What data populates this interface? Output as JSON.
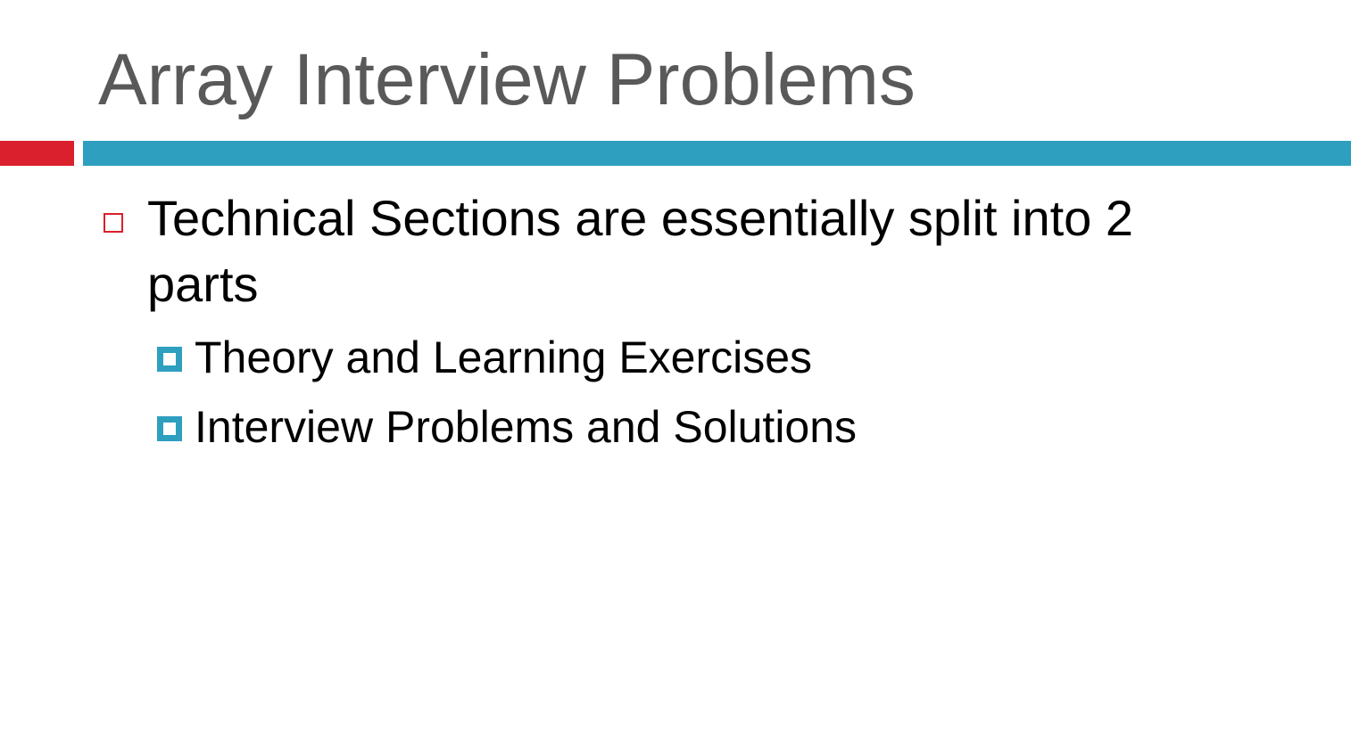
{
  "slide": {
    "title": "Array Interview Problems",
    "colors": {
      "accent_red": "#d9202c",
      "accent_blue": "#2e9fbf",
      "title_text": "#595959",
      "body_text": "#000000"
    },
    "bullets": [
      {
        "text": "Technical Sections are essentially split into 2 parts",
        "marker": "hollow-square-icon",
        "sub_bullets": [
          {
            "text": "Theory and Learning Exercises",
            "marker": "filled-square-icon"
          },
          {
            "text": "Interview Problems and Solutions",
            "marker": "filled-square-icon"
          }
        ]
      }
    ]
  }
}
